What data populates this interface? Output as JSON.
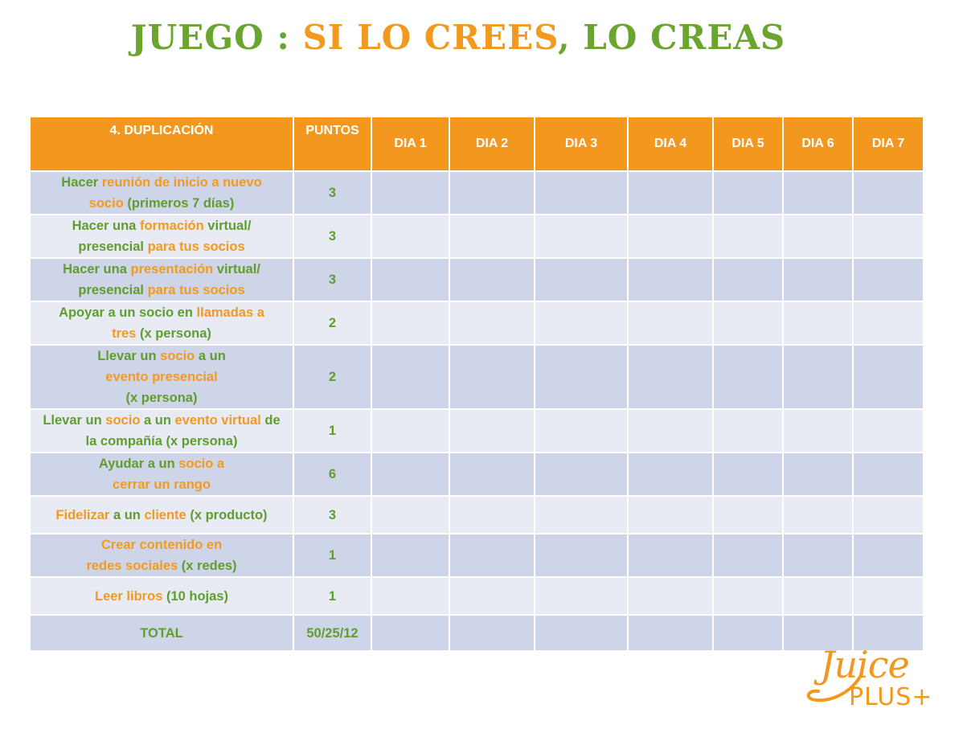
{
  "title": {
    "part1": "JUEGO : ",
    "part2": "SI LO CREES",
    "part3": ", LO CREAS"
  },
  "table": {
    "headers": [
      "4. DUPLICACIÓN",
      "PUNTOS",
      "DIA 1",
      "DIA 2",
      "DIA 3",
      "DIA 4",
      "DIA 5",
      "DIA 6",
      "DIA 7"
    ],
    "rows": [
      {
        "points": "3"
      },
      {
        "points": "3"
      },
      {
        "points": "3"
      },
      {
        "points": "2"
      },
      {
        "points": "2"
      },
      {
        "points": "1"
      },
      {
        "points": "6"
      },
      {
        "points": "3"
      },
      {
        "points": "1"
      },
      {
        "points": "1"
      }
    ],
    "total_label": "TOTAL",
    "total_points": "50/25/12"
  },
  "activities": {
    "r0": {
      "a": "Hacer ",
      "b": "reunión de inicio a nuevo",
      "c": "socio",
      "d": " (primeros 7 días)"
    },
    "r1": {
      "a": "Hacer una ",
      "b": "formación",
      "c": " virtual/",
      "d": "presencial ",
      "e": "para tus socios"
    },
    "r2": {
      "a": "Hacer una ",
      "b": "presentación",
      "c": " virtual/",
      "d": "presencial ",
      "e": "para tus socios"
    },
    "r3": {
      "a": "Apoyar a un socio en ",
      "b": "llamadas a",
      "c": "tres",
      "d": " (x persona)"
    },
    "r4": {
      "a": "Llevar un ",
      "b": "socio",
      "c": " a un",
      "d": "evento presencial",
      "e": "(x persona)"
    },
    "r5": {
      "a": "Llevar un ",
      "b": "socio",
      "c": " a un ",
      "d": "evento virtual",
      "e": " de",
      "f": "la compañía (x persona)"
    },
    "r6": {
      "a": "Ayudar a un ",
      "b": "socio a",
      "c": "cerrar un rango"
    },
    "r7": {
      "a": "Fidelizar",
      "b": " a un ",
      "c": "cliente",
      "d": " (x producto)"
    },
    "r8": {
      "a": "Crear contenido en",
      "b": "redes sociales",
      "c": " (x redes)"
    },
    "r9": {
      "a": "Leer libros",
      "b": " (10 hojas)"
    }
  },
  "logo": {
    "line1": "Juice",
    "line2": "PLUS+"
  },
  "colors": {
    "orange": "#f4971e",
    "green": "#6aa62f",
    "row_dark": "#cfd5e8",
    "row_light": "#e8ebf4"
  }
}
